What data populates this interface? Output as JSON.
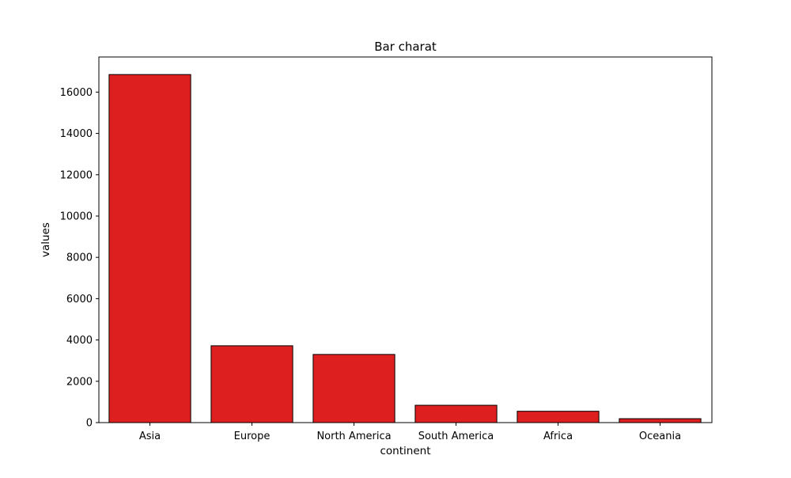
{
  "chart_data": {
    "type": "bar",
    "title": "Bar charat",
    "xlabel": "continent",
    "ylabel": "values",
    "categories": [
      "Asia",
      "Europe",
      "North America",
      "South America",
      "Africa",
      "Oceania"
    ],
    "values": [
      16850,
      3720,
      3300,
      840,
      550,
      190
    ],
    "ylim": [
      0,
      17700
    ],
    "yticks": [
      0,
      2000,
      4000,
      6000,
      8000,
      10000,
      12000,
      14000,
      16000
    ],
    "ytick_labels": [
      "0",
      "2000",
      "4000",
      "6000",
      "8000",
      "10000",
      "12000",
      "14000",
      "16000"
    ],
    "bar_color": "#de1f1f",
    "edge_color": "#000000",
    "grid": false,
    "legend": null
  }
}
